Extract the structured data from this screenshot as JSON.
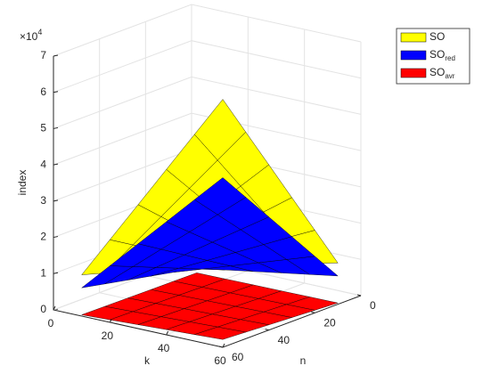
{
  "chart_data": {
    "type": "surface",
    "exponent_base": "×10",
    "exponent": "4",
    "xlabel": "k",
    "ylabel": "n",
    "zlabel": "index",
    "k": [
      10,
      20,
      30,
      40,
      50,
      60
    ],
    "n": [
      10,
      20,
      30,
      40,
      50,
      60
    ],
    "xlim": [
      0,
      60
    ],
    "ylim": [
      0,
      60
    ],
    "zlim": [
      0,
      70000
    ],
    "xticks": [
      0,
      20,
      40,
      60
    ],
    "yticks": [
      0,
      20,
      40,
      60
    ],
    "zticks": [
      0,
      {
        "value": 10000,
        "label": "1"
      },
      {
        "value": 20000,
        "label": "2"
      },
      {
        "value": 30000,
        "label": "3"
      },
      {
        "value": 40000,
        "label": "4"
      },
      {
        "value": 50000,
        "label": "5"
      },
      {
        "value": 60000,
        "label": "6"
      },
      {
        "value": 70000,
        "label": "7"
      }
    ],
    "grid": true,
    "legend": "top-right",
    "series": [
      {
        "name": "SO",
        "color": "#ffff00",
        "values": [
          [
            1900,
            3800,
            5700,
            7600,
            9500,
            11400
          ],
          [
            3800,
            7600,
            11400,
            15200,
            19000,
            22800
          ],
          [
            5700,
            11400,
            17100,
            22800,
            28500,
            34200
          ],
          [
            7600,
            15200,
            22800,
            30400,
            38000,
            45600
          ],
          [
            9500,
            19000,
            28500,
            38000,
            47500,
            57000
          ],
          [
            11400,
            22800,
            34200,
            45600,
            57000,
            68400
          ]
        ]
      },
      {
        "name": "SO",
        "subscript": "red",
        "color": "#0000ff",
        "values": [
          [
            1300,
            2600,
            3900,
            5200,
            6500,
            7800
          ],
          [
            2600,
            5200,
            7800,
            10400,
            13000,
            15600
          ],
          [
            3900,
            7800,
            11700,
            15600,
            19500,
            23400
          ],
          [
            5200,
            10400,
            15600,
            20800,
            26000,
            31200
          ],
          [
            6500,
            13000,
            19500,
            26000,
            32500,
            39000
          ],
          [
            7800,
            15600,
            23400,
            31200,
            39000,
            46800
          ]
        ]
      },
      {
        "name": "SO",
        "subscript": "avr",
        "color": "#ff0000",
        "values": [
          [
            60,
            120,
            180,
            240,
            300,
            360
          ],
          [
            120,
            240,
            360,
            480,
            600,
            720
          ],
          [
            180,
            360,
            540,
            720,
            900,
            1080
          ],
          [
            240,
            480,
            720,
            960,
            1200,
            1440
          ],
          [
            300,
            600,
            900,
            1200,
            1500,
            1800
          ],
          [
            360,
            720,
            1080,
            1440,
            1800,
            2160
          ]
        ]
      }
    ]
  }
}
